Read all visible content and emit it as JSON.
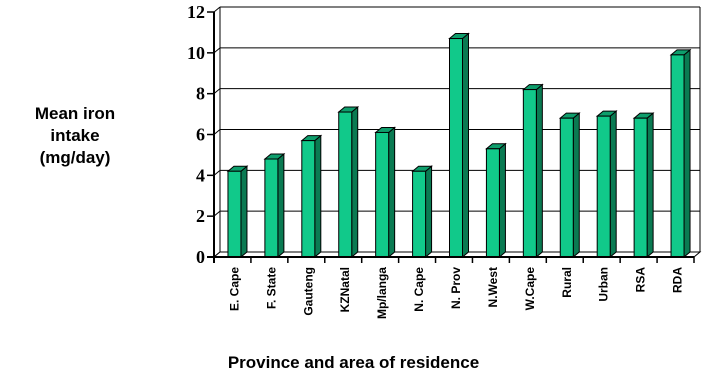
{
  "chart_data": {
    "type": "bar",
    "title": "",
    "xlabel": "Province and area of residence",
    "ylabel": [
      "Mean iron",
      "intake",
      "(mg/day)"
    ],
    "categories": [
      "E. Cape",
      "F. State",
      "Gauteng",
      "KZNatal",
      "Mp/langa",
      "N. Cape",
      "N. Prov",
      "N.West",
      "W.Cape",
      "Rural",
      "Urban",
      "RSA",
      "RDA"
    ],
    "values": [
      4.2,
      4.8,
      5.7,
      7.1,
      6.1,
      4.2,
      10.7,
      5.3,
      8.2,
      6.8,
      6.9,
      6.8,
      9.9
    ],
    "ylim": [
      0,
      12
    ],
    "yticks": [
      "0",
      "2",
      "4",
      "6",
      "8",
      "10",
      "12"
    ],
    "grid": true,
    "colors": {
      "bar_front": "#11c98a",
      "bar_side": "#0a7a52",
      "bar_top": "#0e9e6c",
      "outline": "#000000"
    }
  }
}
